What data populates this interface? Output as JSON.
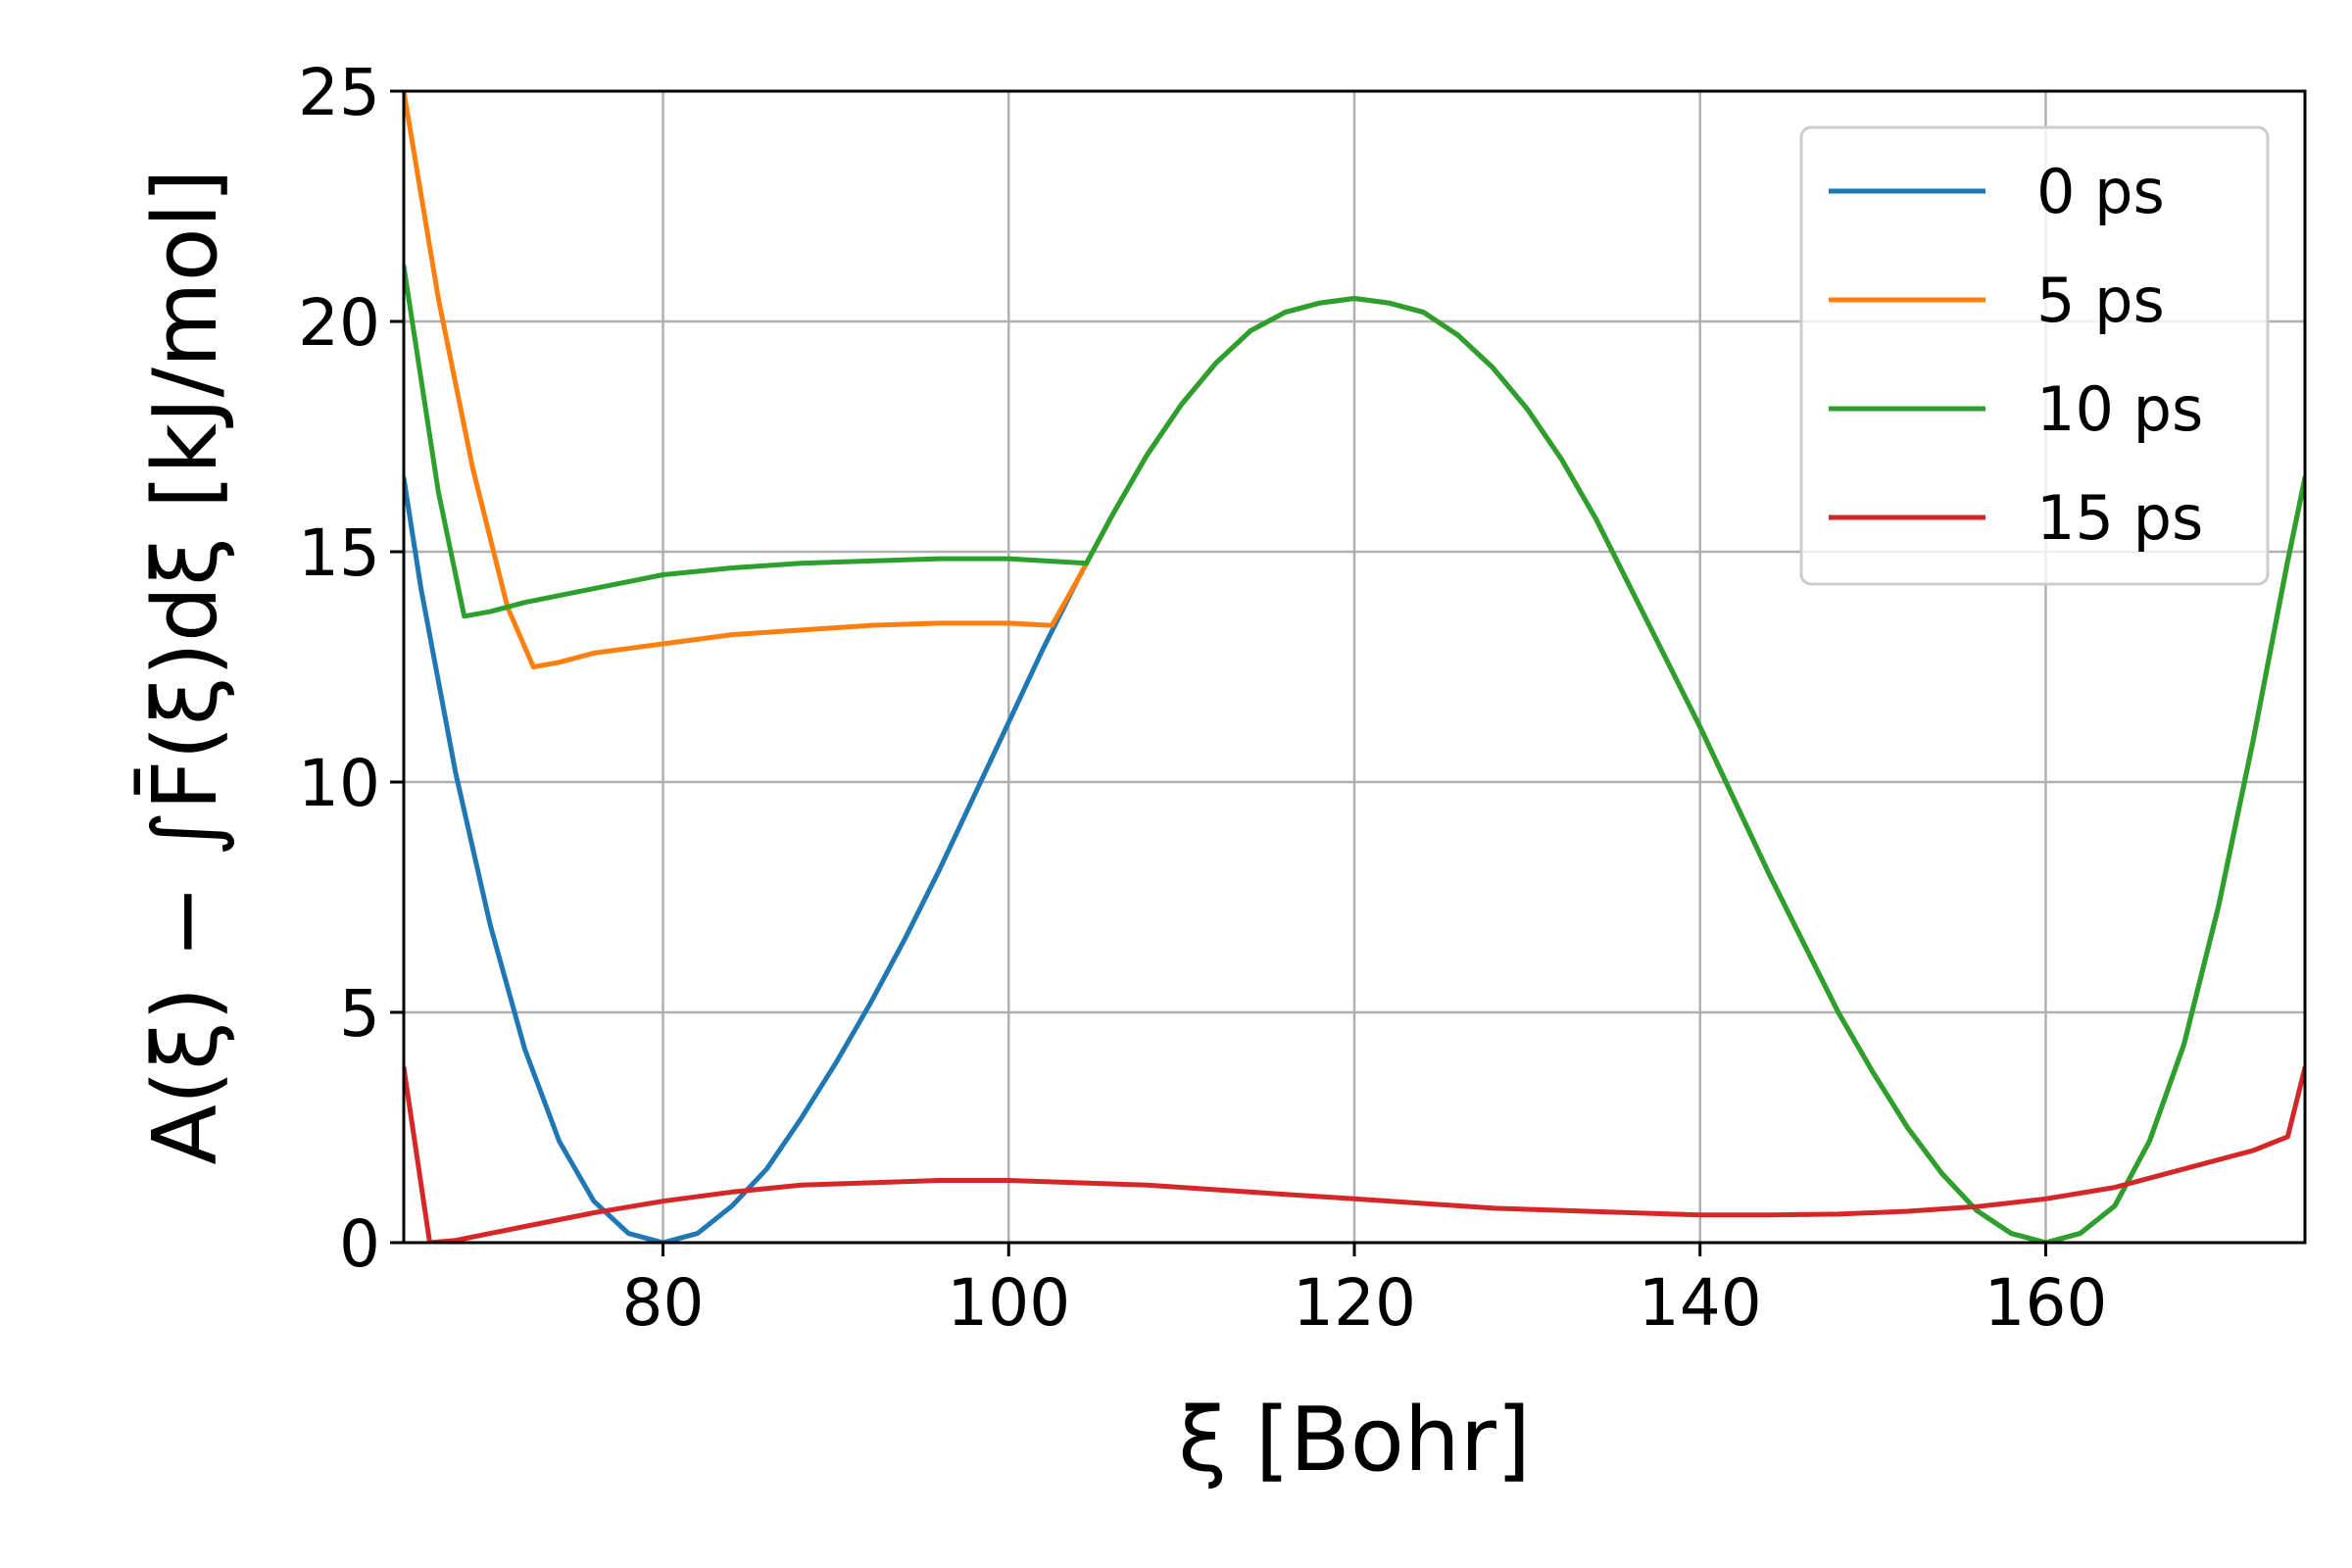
{
  "chart_data": {
    "type": "line",
    "xlabel": "ξ [Bohr]",
    "ylabel": "A(ξ) − ∫F̄(ξ)dξ [kJ/mol]",
    "xlim": [
      65,
      175
    ],
    "ylim": [
      0,
      25
    ],
    "xticks": [
      80,
      100,
      120,
      140,
      160
    ],
    "yticks": [
      0,
      5,
      10,
      15,
      20,
      25
    ],
    "grid": true,
    "legend_position": "top-right",
    "series": [
      {
        "name": "0 ps",
        "color": "#1f77b4",
        "x": [
          65,
          66,
          68,
          70,
          72,
          74,
          76,
          78,
          80,
          82,
          84,
          86,
          88,
          90,
          92,
          94,
          96,
          98,
          100,
          102,
          104,
          106,
          108,
          110,
          112,
          114,
          116,
          118,
          120,
          122,
          124,
          126,
          128,
          130,
          132,
          134,
          136,
          138,
          140,
          142,
          144,
          146,
          148,
          150,
          152,
          154,
          156,
          158,
          160,
          162,
          164,
          166,
          168,
          170,
          172,
          174,
          175
        ],
        "y": [
          16.6,
          14.2,
          10.2,
          6.9,
          4.2,
          2.2,
          0.9,
          0.2,
          0,
          0.2,
          0.8,
          1.6,
          2.7,
          3.9,
          5.2,
          6.6,
          8.1,
          9.7,
          11.3,
          12.9,
          14.4,
          15.8,
          17.1,
          18.2,
          19.1,
          19.8,
          20.2,
          20.4,
          20.5,
          20.4,
          20.2,
          19.7,
          19,
          18.1,
          17,
          15.7,
          14.2,
          12.7,
          11.2,
          9.6,
          8,
          6.5,
          5,
          3.7,
          2.5,
          1.5,
          0.7,
          0.2,
          0,
          0.2,
          0.8,
          2.2,
          4.3,
          7.3,
          10.9,
          14.8,
          16.6
        ]
      },
      {
        "name": "5 ps",
        "color": "#ff7f0e",
        "x": [
          65,
          67,
          69,
          71,
          72.5,
          74,
          76,
          78,
          80,
          84,
          88,
          92,
          96,
          100,
          102.5,
          104,
          106,
          108,
          110,
          112,
          114,
          116,
          118,
          120,
          122,
          124,
          126,
          128,
          130,
          132,
          134,
          136,
          138,
          140,
          142,
          144,
          146,
          148,
          150,
          152,
          154,
          156,
          158,
          160,
          162,
          164,
          166,
          168,
          170,
          172,
          174,
          175
        ],
        "y": [
          25,
          20.5,
          16.8,
          13.8,
          12.5,
          12.6,
          12.8,
          12.9,
          13,
          13.2,
          13.3,
          13.4,
          13.45,
          13.45,
          13.4,
          14.4,
          15.8,
          17.1,
          18.2,
          19.1,
          19.8,
          20.2,
          20.4,
          20.5,
          20.4,
          20.2,
          19.7,
          19,
          18.1,
          17,
          15.7,
          14.2,
          12.7,
          11.2,
          9.6,
          8,
          6.5,
          5,
          3.7,
          2.5,
          1.5,
          0.7,
          0.2,
          0,
          0.2,
          0.8,
          2.2,
          4.3,
          7.3,
          10.9,
          14.8,
          16.6
        ]
      },
      {
        "name": "10 ps",
        "color": "#2ca02c",
        "x": [
          65,
          67,
          68.5,
          70,
          72,
          76,
          80,
          84,
          88,
          92,
          96,
          100,
          104.5,
          106,
          108,
          110,
          112,
          114,
          116,
          118,
          120,
          122,
          124,
          126,
          128,
          130,
          132,
          134,
          136,
          138,
          140,
          142,
          144,
          146,
          148,
          150,
          152,
          154,
          156,
          158,
          160,
          162,
          164,
          166,
          168,
          170,
          172,
          174,
          175
        ],
        "y": [
          21.2,
          16.3,
          13.6,
          13.7,
          13.9,
          14.2,
          14.5,
          14.65,
          14.75,
          14.8,
          14.85,
          14.85,
          14.75,
          15.8,
          17.1,
          18.2,
          19.1,
          19.8,
          20.2,
          20.4,
          20.5,
          20.4,
          20.2,
          19.7,
          19,
          18.1,
          17,
          15.7,
          14.2,
          12.7,
          11.2,
          9.6,
          8,
          6.5,
          5,
          3.7,
          2.5,
          1.5,
          0.7,
          0.2,
          0,
          0.2,
          0.8,
          2.2,
          4.3,
          7.3,
          10.9,
          14.8,
          16.6
        ]
      },
      {
        "name": "15 ps",
        "color": "#d62728",
        "x": [
          65,
          66.5,
          68,
          70,
          72,
          76,
          80,
          84,
          88,
          92,
          96,
          100,
          104,
          108,
          112,
          116,
          120,
          124,
          128,
          132,
          136,
          140,
          144,
          148,
          152,
          156,
          160,
          164,
          168,
          172,
          174,
          175
        ],
        "y": [
          3.8,
          0,
          0.05,
          0.2,
          0.35,
          0.65,
          0.9,
          1.1,
          1.25,
          1.3,
          1.35,
          1.35,
          1.3,
          1.25,
          1.15,
          1.05,
          0.95,
          0.85,
          0.75,
          0.7,
          0.65,
          0.6,
          0.6,
          0.62,
          0.68,
          0.78,
          0.95,
          1.2,
          1.6,
          2.0,
          2.3,
          3.8
        ]
      }
    ]
  }
}
